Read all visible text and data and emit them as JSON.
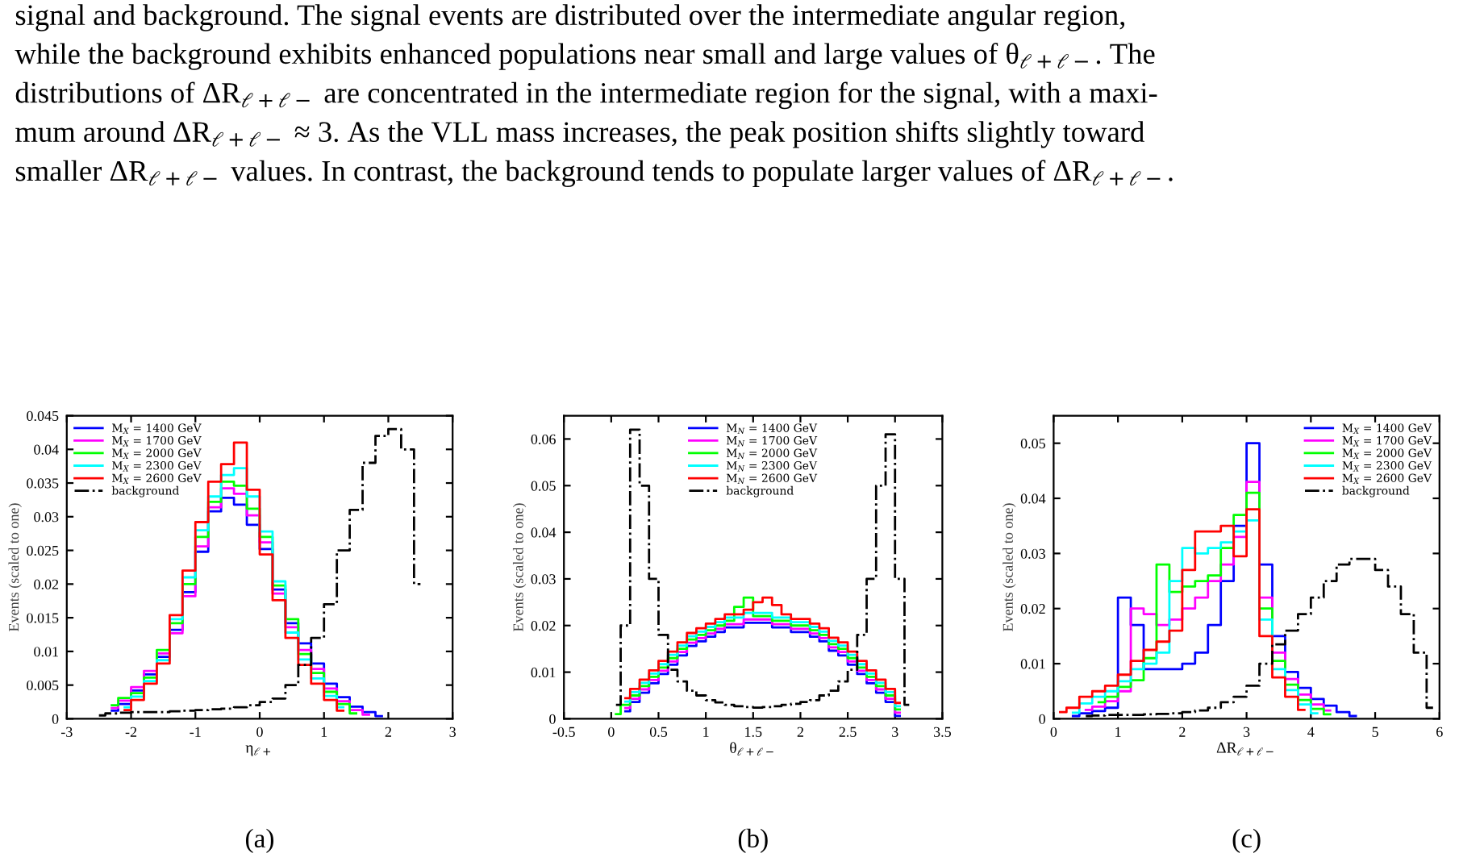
{
  "chart_data": [
    {
      "type": "step",
      "xlabel": "η$_{ℓ+}$",
      "ylabel": "Events (scaled to one)",
      "xlim": [
        -3,
        3
      ],
      "xticks": [
        -3,
        -2,
        -1,
        0,
        1,
        2,
        3
      ],
      "ylim": [
        0,
        0.045
      ],
      "yticks": [
        0,
        0.005,
        0.01,
        0.015,
        0.02,
        0.025,
        0.03,
        0.035,
        0.04,
        0.045
      ],
      "legend": "top left",
      "grid": false,
      "annotations": [
        "signal and background. The signal events are distributed over the intermediate angular region,\nwhile the background exhibits enhanced populations near small and large values of θ$_{ℓ+ℓ−}$. The\ndistributions of ΔR$_{ℓ+ℓ−}$ are concentrated in the intermediate region for the signal, with a maxi-\nmum around ΔR$_{ℓ+ℓ−}$ ≈ 3. As the VLL mass increases, the peak position shifts slightly toward\nsmaller ΔR$_{ℓ+ℓ−}$ values. In contrast, the background tends to populate larger values of ΔR$_{ℓ+ℓ−}$.",
        "(a)"
      ],
      "series": [
        {
          "name": "M$_{X}$ = 1400 GeV",
          "color": "#0000ff",
          "line_style": "solid",
          "x": [
            -2.3,
            -2.1,
            -1.9,
            -1.7,
            -1.5,
            -1.3,
            -1.1,
            -0.9,
            -0.7,
            -0.5,
            -0.3,
            -0.1,
            0.1,
            0.3,
            0.5,
            0.7,
            0.9,
            1.1,
            1.3,
            1.5,
            1.7,
            1.9
          ],
          "values": [
            0.0012,
            0.0022,
            0.0042,
            0.0066,
            0.0092,
            0.0132,
            0.0188,
            0.0248,
            0.0308,
            0.0328,
            0.0318,
            0.0288,
            0.0252,
            0.0192,
            0.0142,
            0.0112,
            0.0082,
            0.0052,
            0.0032,
            0.0018,
            0.001,
            0.0004
          ]
        },
        {
          "name": "M$_{X}$ = 1700 GeV",
          "color": "#ff00ff",
          "line_style": "solid",
          "x": [
            -2.3,
            -2.1,
            -1.9,
            -1.7,
            -1.5,
            -1.3,
            -1.1,
            -0.9,
            -0.7,
            -0.5,
            -0.3,
            -0.1,
            0.1,
            0.3,
            0.5,
            0.7,
            0.9,
            1.1,
            1.3,
            1.5,
            1.7
          ],
          "values": [
            0.0016,
            0.0027,
            0.0047,
            0.0071,
            0.0097,
            0.0127,
            0.0182,
            0.0256,
            0.0314,
            0.0342,
            0.0334,
            0.0302,
            0.0262,
            0.0186,
            0.0136,
            0.0102,
            0.0074,
            0.0045,
            0.0026,
            0.0013,
            0.0006
          ]
        },
        {
          "name": "M$_{X}$ = 2000 GeV",
          "color": "#00ff00",
          "line_style": "solid",
          "x": [
            -2.3,
            -2.1,
            -1.9,
            -1.7,
            -1.5,
            -1.3,
            -1.1,
            -0.9,
            -0.7,
            -0.5,
            -0.3,
            -0.1,
            0.1,
            0.3,
            0.5,
            0.7,
            0.9,
            1.1,
            1.3,
            1.5
          ],
          "values": [
            0.002,
            0.0031,
            0.0038,
            0.0061,
            0.0102,
            0.0142,
            0.02,
            0.027,
            0.0322,
            0.0352,
            0.0346,
            0.0312,
            0.027,
            0.0198,
            0.0148,
            0.0096,
            0.0068,
            0.004,
            0.0022,
            0.0008
          ]
        },
        {
          "name": "M$_{X}$ = 2300 GeV",
          "color": "#00ffff",
          "line_style": "solid",
          "x": [
            -2.1,
            -1.9,
            -1.7,
            -1.5,
            -1.3,
            -1.1,
            -0.9,
            -0.7,
            -0.5,
            -0.3,
            -0.1,
            0.1,
            0.3,
            0.5,
            0.7,
            0.9,
            1.1,
            1.3
          ],
          "values": [
            0.0017,
            0.0033,
            0.0056,
            0.0087,
            0.0148,
            0.021,
            0.028,
            0.033,
            0.0362,
            0.0372,
            0.033,
            0.0278,
            0.0204,
            0.0128,
            0.0088,
            0.006,
            0.0034,
            0.0017
          ]
        },
        {
          "name": "M$_{X}$ = 2600 GeV",
          "color": "#ff0000",
          "line_style": "solid",
          "x": [
            -2.1,
            -1.9,
            -1.7,
            -1.5,
            -1.3,
            -1.1,
            -0.9,
            -0.7,
            -0.5,
            -0.3,
            -0.1,
            0.1,
            0.3,
            0.5,
            0.7,
            0.9,
            1.1,
            1.3
          ],
          "values": [
            0.0013,
            0.0028,
            0.0052,
            0.0082,
            0.0154,
            0.022,
            0.0292,
            0.0352,
            0.0378,
            0.041,
            0.034,
            0.0244,
            0.0176,
            0.012,
            0.008,
            0.0052,
            0.0028,
            0.0012
          ]
        },
        {
          "name": "background",
          "color": "#000000",
          "line_style": "dashdot",
          "x": [
            -2.5,
            -2.3,
            -2.1,
            -1.9,
            -1.7,
            -1.5,
            -1.3,
            -1.1,
            -0.9,
            -0.7,
            -0.5,
            -0.3,
            -0.1,
            0.1,
            0.3,
            0.5,
            0.7,
            0.9,
            1.1,
            1.3,
            1.5,
            1.7,
            1.9,
            2.1,
            2.3,
            2.5
          ],
          "values": [
            0.0005,
            0.0008,
            0.0009,
            0.001,
            0.001,
            0.001,
            0.0011,
            0.0012,
            0.0013,
            0.0014,
            0.0015,
            0.0017,
            0.002,
            0.0025,
            0.003,
            0.005,
            0.008,
            0.012,
            0.017,
            0.025,
            0.031,
            0.038,
            0.042,
            0.043,
            0.04,
            0.02
          ]
        }
      ]
    },
    {
      "type": "step",
      "xlabel": "θ$_{ℓ+ℓ−}$",
      "ylabel": "Events (scaled to one)",
      "xlim": [
        -0.5,
        3.5
      ],
      "xticks": [
        -0.5,
        0,
        0.5,
        1,
        1.5,
        2,
        2.5,
        3,
        3.5
      ],
      "ylim": [
        0,
        0.065
      ],
      "yticks": [
        0,
        0.01,
        0.02,
        0.03,
        0.04,
        0.05,
        0.06
      ],
      "legend": "top",
      "grid": false,
      "annotations": [
        "(b)"
      ],
      "series": [
        {
          "name": "M$_{N}$ = 1400 GeV",
          "color": "#0000ff",
          "line_style": "solid",
          "x": [
            0.15,
            0.25,
            0.35,
            0.45,
            0.55,
            0.65,
            0.75,
            0.85,
            0.95,
            1.05,
            1.15,
            1.25,
            1.35,
            1.45,
            1.55,
            1.65,
            1.75,
            1.85,
            1.95,
            2.05,
            2.15,
            2.25,
            2.35,
            2.45,
            2.55,
            2.65,
            2.75,
            2.85,
            2.95,
            3.05
          ],
          "values": [
            0.0016,
            0.0036,
            0.0056,
            0.0076,
            0.0096,
            0.0116,
            0.0136,
            0.0156,
            0.0166,
            0.0176,
            0.0186,
            0.0196,
            0.0196,
            0.0206,
            0.0206,
            0.0206,
            0.0196,
            0.0196,
            0.0186,
            0.0186,
            0.0176,
            0.0166,
            0.0146,
            0.0136,
            0.0116,
            0.0096,
            0.0076,
            0.0056,
            0.0036,
            0.0006
          ]
        },
        {
          "name": "M$_{N}$ = 1700 GeV",
          "color": "#ff00ff",
          "line_style": "solid",
          "x": [
            0.15,
            0.25,
            0.35,
            0.45,
            0.55,
            0.65,
            0.75,
            0.85,
            0.95,
            1.05,
            1.15,
            1.25,
            1.35,
            1.45,
            1.55,
            1.65,
            1.75,
            1.85,
            1.95,
            2.05,
            2.15,
            2.25,
            2.35,
            2.45,
            2.55,
            2.65,
            2.75,
            2.85,
            2.95,
            3.05
          ],
          "values": [
            0.0023,
            0.0043,
            0.0063,
            0.0083,
            0.0103,
            0.0123,
            0.0143,
            0.0163,
            0.0173,
            0.0183,
            0.0193,
            0.0203,
            0.0203,
            0.0213,
            0.0213,
            0.0213,
            0.0203,
            0.0203,
            0.0193,
            0.0193,
            0.0183,
            0.0173,
            0.0153,
            0.0143,
            0.0123,
            0.0103,
            0.0083,
            0.0063,
            0.0043,
            0.0013
          ]
        },
        {
          "name": "M$_{N}$ = 2000 GeV",
          "color": "#00ff00",
          "line_style": "solid",
          "x": [
            0.05,
            0.15,
            0.25,
            0.35,
            0.45,
            0.55,
            0.65,
            0.75,
            0.85,
            0.95,
            1.05,
            1.15,
            1.25,
            1.35,
            1.45,
            1.55,
            1.65,
            1.75,
            1.85,
            1.95,
            2.05,
            2.15,
            2.25,
            2.35,
            2.45,
            2.55,
            2.65,
            2.75,
            2.85,
            2.95,
            3.05
          ],
          "values": [
            0.001,
            0.003,
            0.005,
            0.007,
            0.009,
            0.011,
            0.013,
            0.015,
            0.017,
            0.018,
            0.019,
            0.02,
            0.021,
            0.024,
            0.026,
            0.022,
            0.022,
            0.021,
            0.021,
            0.02,
            0.02,
            0.019,
            0.018,
            0.016,
            0.015,
            0.013,
            0.011,
            0.009,
            0.007,
            0.005,
            0.002
          ]
        },
        {
          "name": "M$_{N}$ = 2300 GeV",
          "color": "#00ffff",
          "line_style": "solid",
          "x": [
            0.15,
            0.25,
            0.35,
            0.45,
            0.55,
            0.65,
            0.75,
            0.85,
            0.95,
            1.05,
            1.15,
            1.25,
            1.35,
            1.45,
            1.55,
            1.65,
            1.75,
            1.85,
            1.95,
            2.05,
            2.15,
            2.25,
            2.35,
            2.45,
            2.55,
            2.65,
            2.75,
            2.85,
            2.95,
            3.05
          ],
          "values": [
            0.0037,
            0.0057,
            0.0077,
            0.0097,
            0.0117,
            0.0137,
            0.0157,
            0.0177,
            0.0187,
            0.0197,
            0.0207,
            0.0217,
            0.0217,
            0.0227,
            0.0227,
            0.0227,
            0.0217,
            0.0217,
            0.0207,
            0.0207,
            0.0197,
            0.0187,
            0.0167,
            0.0157,
            0.0137,
            0.0117,
            0.0097,
            0.0077,
            0.0057,
            0.0027
          ]
        },
        {
          "name": "M$_{N}$ = 2600 GeV",
          "color": "#ff0000",
          "line_style": "solid",
          "x": [
            0.15,
            0.25,
            0.35,
            0.45,
            0.55,
            0.65,
            0.75,
            0.85,
            0.95,
            1.05,
            1.15,
            1.25,
            1.35,
            1.45,
            1.55,
            1.65,
            1.75,
            1.85,
            1.95,
            2.05,
            2.15,
            2.25,
            2.35,
            2.45,
            2.55,
            2.65,
            2.75,
            2.85,
            2.95,
            3.05
          ],
          "values": [
            0.0044,
            0.0064,
            0.0084,
            0.0104,
            0.0124,
            0.0144,
            0.0164,
            0.0184,
            0.0194,
            0.0204,
            0.0214,
            0.0224,
            0.0224,
            0.0234,
            0.025,
            0.026,
            0.0244,
            0.0224,
            0.0214,
            0.0214,
            0.0204,
            0.0194,
            0.0174,
            0.0164,
            0.0144,
            0.0124,
            0.0104,
            0.0084,
            0.0064,
            0.0034
          ]
        },
        {
          "name": "background",
          "color": "#000000",
          "line_style": "dashdot",
          "x": [
            0.05,
            0.15,
            0.25,
            0.35,
            0.45,
            0.55,
            0.65,
            0.75,
            0.85,
            0.95,
            1.05,
            1.15,
            1.25,
            1.35,
            1.45,
            1.55,
            1.65,
            1.75,
            1.85,
            1.95,
            2.05,
            2.15,
            2.25,
            2.35,
            2.45,
            2.55,
            2.65,
            2.75,
            2.85,
            2.95,
            3.05,
            3.15
          ],
          "values": [
            0.003,
            0.02,
            0.062,
            0.05,
            0.03,
            0.018,
            0.0105,
            0.008,
            0.006,
            0.005,
            0.004,
            0.0035,
            0.003,
            0.0027,
            0.0025,
            0.0024,
            0.0025,
            0.0027,
            0.003,
            0.0032,
            0.0036,
            0.004,
            0.005,
            0.006,
            0.008,
            0.0105,
            0.018,
            0.03,
            0.05,
            0.061,
            0.03,
            0.003
          ]
        }
      ]
    },
    {
      "type": "step",
      "xlabel": "ΔR$_{ℓ+ℓ−}$",
      "ylabel": "Events (scaled to one)",
      "xlim": [
        0,
        6
      ],
      "xticks": [
        0,
        1,
        2,
        3,
        4,
        5,
        6
      ],
      "ylim": [
        0,
        0.055
      ],
      "yticks": [
        0,
        0.01,
        0.02,
        0.03,
        0.04,
        0.05
      ],
      "legend": "top right",
      "grid": false,
      "annotations": [
        "(c)"
      ],
      "series": [
        {
          "name": "M$_{X}$ = 1400 GeV",
          "color": "#0000ff",
          "line_style": "solid",
          "x": [
            0.3,
            0.5,
            0.7,
            0.9,
            1.1,
            1.3,
            1.5,
            1.7,
            1.9,
            2.1,
            2.3,
            2.5,
            2.7,
            2.9,
            3.1,
            3.3,
            3.5,
            3.7,
            3.9,
            4.1,
            4.3,
            4.5,
            4.7
          ],
          "values": [
            0.0005,
            0.001,
            0.0014,
            0.002,
            0.022,
            0.017,
            0.009,
            0.009,
            0.009,
            0.01,
            0.012,
            0.017,
            0.025,
            0.035,
            0.05,
            0.028,
            0.015,
            0.0085,
            0.0056,
            0.0036,
            0.0024,
            0.0012,
            0.0005
          ]
        },
        {
          "name": "M$_{X}$ = 1700 GeV",
          "color": "#ff00ff",
          "line_style": "solid",
          "x": [
            0.5,
            0.7,
            0.9,
            1.1,
            1.3,
            1.5,
            1.7,
            1.9,
            2.1,
            2.3,
            2.5,
            2.7,
            2.9,
            3.1,
            3.3,
            3.5,
            3.7,
            3.9,
            4.1,
            4.3
          ],
          "values": [
            0.0016,
            0.0022,
            0.0032,
            0.005,
            0.02,
            0.019,
            0.017,
            0.018,
            0.02,
            0.022,
            0.025,
            0.028,
            0.033,
            0.043,
            0.022,
            0.012,
            0.0072,
            0.0044,
            0.0026,
            0.0015
          ]
        },
        {
          "name": "M$_{X}$ = 2000 GeV",
          "color": "#00ff00",
          "line_style": "solid",
          "x": [
            0.7,
            0.9,
            1.1,
            1.3,
            1.5,
            1.7,
            1.9,
            2.1,
            2.3,
            2.5,
            2.7,
            2.9,
            3.1,
            3.3,
            3.5,
            3.7,
            3.9,
            4.1,
            4.3
          ],
          "values": [
            0.003,
            0.004,
            0.0058,
            0.007,
            0.011,
            0.028,
            0.023,
            0.024,
            0.025,
            0.026,
            0.031,
            0.037,
            0.041,
            0.02,
            0.0105,
            0.0062,
            0.0034,
            0.0018,
            0.0008
          ]
        },
        {
          "name": "M$_{X}$ = 2300 GeV",
          "color": "#00ffff",
          "line_style": "solid",
          "x": [
            0.3,
            0.5,
            0.7,
            0.9,
            1.1,
            1.3,
            1.5,
            1.7,
            1.9,
            2.1,
            2.3,
            2.5,
            2.7,
            2.9,
            3.1,
            3.3,
            3.5,
            3.7,
            3.9,
            4.1
          ],
          "values": [
            0.0011,
            0.0028,
            0.004,
            0.005,
            0.0068,
            0.009,
            0.01,
            0.012,
            0.025,
            0.031,
            0.03,
            0.031,
            0.032,
            0.034,
            0.036,
            0.018,
            0.009,
            0.0052,
            0.0026,
            0.001
          ]
        },
        {
          "name": "M$_{X}$ = 2600 GeV",
          "color": "#ff0000",
          "line_style": "solid",
          "x": [
            0.1,
            0.3,
            0.5,
            0.7,
            0.9,
            1.1,
            1.3,
            1.5,
            1.7,
            1.9,
            2.1,
            2.3,
            2.5,
            2.7,
            2.9,
            3.1,
            3.3,
            3.5,
            3.7,
            3.9
          ],
          "values": [
            0.0012,
            0.002,
            0.004,
            0.005,
            0.006,
            0.008,
            0.0105,
            0.0125,
            0.014,
            0.016,
            0.027,
            0.034,
            0.034,
            0.035,
            0.0295,
            0.038,
            0.015,
            0.0075,
            0.004,
            0.0016
          ]
        },
        {
          "name": "background",
          "color": "#000000",
          "line_style": "dashdot",
          "x": [
            0.5,
            0.7,
            0.9,
            1.1,
            1.3,
            1.5,
            1.7,
            1.9,
            2.1,
            2.3,
            2.5,
            2.7,
            2.9,
            3.1,
            3.3,
            3.5,
            3.7,
            3.9,
            4.1,
            4.3,
            4.5,
            4.7,
            4.9,
            5.1,
            5.3,
            5.5,
            5.7,
            5.9
          ],
          "values": [
            0.0005,
            0.0006,
            0.0007,
            0.0007,
            0.0007,
            0.0008,
            0.0009,
            0.001,
            0.0012,
            0.0015,
            0.002,
            0.003,
            0.004,
            0.006,
            0.01,
            0.0135,
            0.016,
            0.019,
            0.022,
            0.025,
            0.028,
            0.029,
            0.029,
            0.027,
            0.024,
            0.019,
            0.012,
            0.002
          ]
        }
      ]
    }
  ]
}
